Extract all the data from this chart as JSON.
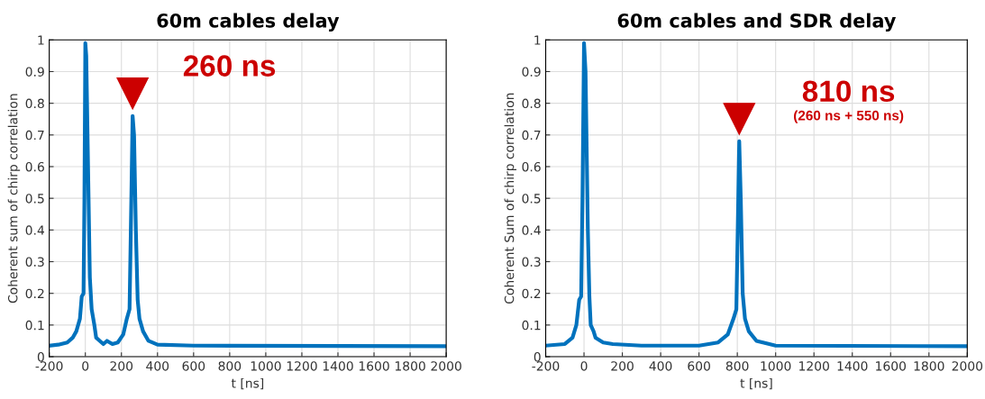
{
  "chart_data": [
    {
      "type": "line",
      "title": "60m cables delay",
      "xlabel": "t [ns]",
      "ylabel": "Coherent sum of chirp correlation",
      "x": [
        -200,
        -150,
        -100,
        -70,
        -50,
        -40,
        -30,
        -20,
        -10,
        -5,
        0,
        5,
        15,
        25,
        35,
        50,
        60,
        80,
        100,
        120,
        150,
        180,
        210,
        230,
        245,
        255,
        262,
        270,
        280,
        290,
        300,
        320,
        350,
        400,
        600,
        2000
      ],
      "series": [
        {
          "color": "#0072bd",
          "values": [
            0.035,
            0.038,
            0.045,
            0.06,
            0.08,
            0.1,
            0.12,
            0.19,
            0.2,
            0.5,
            0.99,
            0.95,
            0.6,
            0.25,
            0.15,
            0.1,
            0.06,
            0.05,
            0.04,
            0.05,
            0.04,
            0.045,
            0.07,
            0.12,
            0.15,
            0.5,
            0.76,
            0.7,
            0.4,
            0.18,
            0.12,
            0.08,
            0.05,
            0.038,
            0.035,
            0.033
          ]
        }
      ],
      "xlim": [
        -200,
        2000
      ],
      "xticks": [
        -200,
        0,
        200,
        400,
        600,
        800,
        1000,
        1200,
        1400,
        1600,
        1800,
        2000
      ],
      "ylim": [
        0,
        1
      ],
      "yticks": [
        0,
        0.1,
        0.2,
        0.3,
        0.4,
        0.5,
        0.6,
        0.7,
        0.8,
        0.9,
        1
      ],
      "grid": true,
      "legend": false,
      "annotations": [
        {
          "text": "260 ns",
          "x": 262,
          "y": 0.76
        }
      ]
    },
    {
      "type": "line",
      "title": "60m cables and SDR delay",
      "xlabel": "t [ns]",
      "ylabel": "Coherent Sum of chirp correlation",
      "x": [
        -200,
        -100,
        -60,
        -40,
        -25,
        -15,
        -8,
        0,
        8,
        20,
        28,
        35,
        50,
        60,
        100,
        150,
        300,
        600,
        700,
        750,
        780,
        795,
        805,
        810,
        818,
        828,
        840,
        860,
        900,
        1000,
        2000
      ],
      "series": [
        {
          "color": "#0072bd",
          "values": [
            0.035,
            0.04,
            0.06,
            0.1,
            0.18,
            0.19,
            0.5,
            0.99,
            0.9,
            0.4,
            0.19,
            0.1,
            0.08,
            0.06,
            0.045,
            0.04,
            0.035,
            0.035,
            0.045,
            0.07,
            0.12,
            0.15,
            0.5,
            0.68,
            0.5,
            0.2,
            0.12,
            0.08,
            0.05,
            0.035,
            0.033
          ]
        }
      ],
      "xlim": [
        -200,
        2000
      ],
      "xticks": [
        -200,
        0,
        200,
        400,
        600,
        800,
        1000,
        1200,
        1400,
        1600,
        1800,
        2000
      ],
      "ylim": [
        0,
        1
      ],
      "yticks": [
        0,
        0.1,
        0.2,
        0.3,
        0.4,
        0.5,
        0.6,
        0.7,
        0.8,
        0.9,
        1
      ],
      "grid": true,
      "legend": false,
      "annotations": [
        {
          "text": "810 ns",
          "x": 810,
          "y": 0.68
        },
        "(260 ns + 550 ns)"
      ]
    }
  ]
}
